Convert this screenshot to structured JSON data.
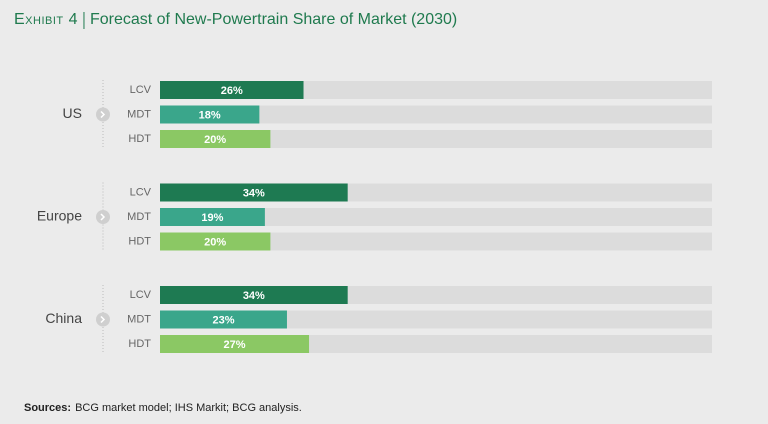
{
  "chart_data": {
    "type": "grouped-hbar",
    "title_prefix": "Exhibit 4",
    "title": "Forecast of New-Powertrain Share of Market (2030)",
    "categories": [
      "US",
      "Europe",
      "China"
    ],
    "series": [
      {
        "name": "LCV",
        "color": "#1e7a52",
        "values": [
          26,
          34,
          34
        ],
        "value_labels": [
          "26%",
          "34%",
          "34%"
        ]
      },
      {
        "name": "MDT",
        "color": "#3aa68b",
        "values": [
          18,
          19,
          23
        ],
        "value_labels": [
          "18%",
          "19%",
          "23%"
        ]
      },
      {
        "name": "HDT",
        "color": "#8bc864",
        "values": [
          20,
          20,
          27
        ],
        "value_labels": [
          "20%",
          "20%",
          "27%"
        ]
      }
    ],
    "xlim": [
      0,
      100
    ],
    "source_label": "Sources:",
    "source": "BCG market model; IHS Markit; BCG analysis."
  }
}
